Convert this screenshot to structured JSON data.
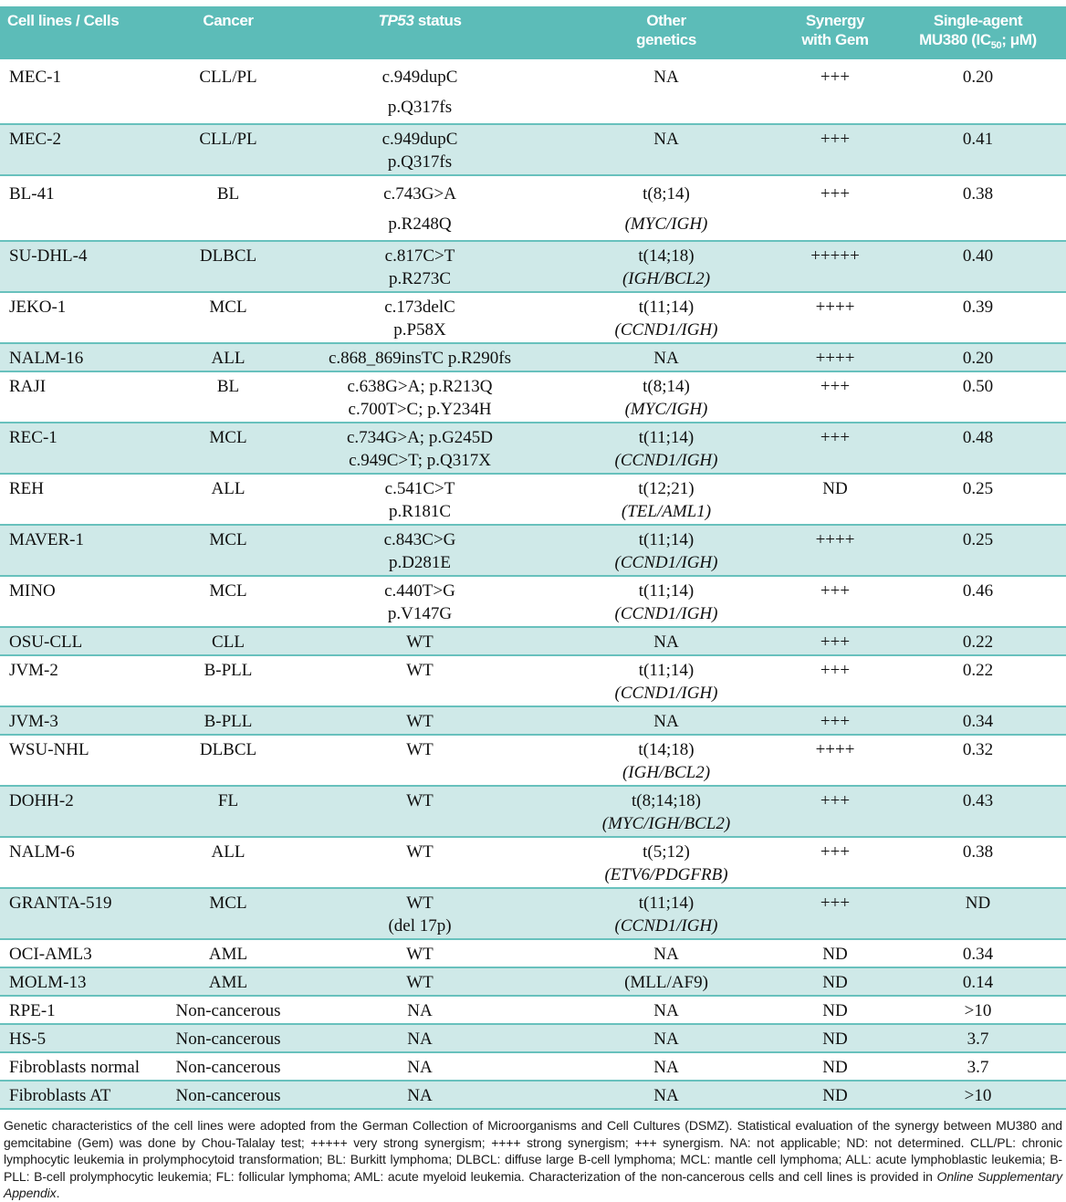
{
  "table": {
    "headers": {
      "col1": "Cell lines / Cells",
      "col2": "Cancer",
      "col3_italic": "TP53",
      "col3_rest": " status",
      "col4_line1": "Other",
      "col4_line2": "genetics",
      "col5_line1": "Synergy",
      "col5_line2": "with Gem",
      "col6_line1": "Single-agent",
      "col6_line2_prefix": "MU380 (IC",
      "col6_line2_sub": "50",
      "col6_line2_suffix": "; μM)"
    },
    "rows": [
      {
        "cell_line": "MEC-1",
        "cancer": "CLL/PL",
        "tp53": [
          "c.949dupC",
          "p.Q317fs"
        ],
        "genetics": [
          "NA"
        ],
        "synergy": "+++",
        "ic50": "0.20",
        "tall": true
      },
      {
        "cell_line": "MEC-2",
        "cancer": "CLL/PL",
        "tp53": [
          "c.949dupC",
          "p.Q317fs"
        ],
        "genetics": [
          "NA"
        ],
        "synergy": "+++",
        "ic50": "0.41",
        "tall": false
      },
      {
        "cell_line": "BL-41",
        "cancer": "BL",
        "tp53": [
          "c.743G>A",
          "p.R248Q"
        ],
        "genetics": [
          "t(8;14)",
          "(MYC/IGH)"
        ],
        "synergy": "+++",
        "ic50": "0.38",
        "tall": true
      },
      {
        "cell_line": "SU-DHL-4",
        "cancer": "DLBCL",
        "tp53": [
          "c.817C>T",
          "p.R273C"
        ],
        "genetics": [
          "t(14;18)",
          "(IGH/BCL2)"
        ],
        "synergy": "+++++",
        "ic50": "0.40",
        "tall": false
      },
      {
        "cell_line": "JEKO-1",
        "cancer": "MCL",
        "tp53": [
          "c.173delC",
          "p.P58X"
        ],
        "genetics": [
          "t(11;14)",
          "(CCND1/IGH)"
        ],
        "synergy": "++++",
        "ic50": "0.39",
        "tall": false
      },
      {
        "cell_line": "NALM-16",
        "cancer": "ALL",
        "tp53": [
          "c.868_869insTC p.R290fs"
        ],
        "genetics": [
          "NA"
        ],
        "synergy": "++++",
        "ic50": "0.20",
        "tall": false
      },
      {
        "cell_line": "RAJI",
        "cancer": "BL",
        "tp53": [
          "c.638G>A; p.R213Q",
          "c.700T>C; p.Y234H"
        ],
        "genetics": [
          "t(8;14)",
          "(MYC/IGH)"
        ],
        "synergy": "+++",
        "ic50": "0.50",
        "tall": false
      },
      {
        "cell_line": "REC-1",
        "cancer": "MCL",
        "tp53": [
          "c.734G>A; p.G245D",
          "c.949C>T; p.Q317X"
        ],
        "genetics": [
          "t(11;14)",
          "(CCND1/IGH)"
        ],
        "synergy": "+++",
        "ic50": "0.48",
        "tall": false
      },
      {
        "cell_line": "REH",
        "cancer": "ALL",
        "tp53": [
          "c.541C>T",
          "p.R181C"
        ],
        "genetics": [
          "t(12;21)",
          "(TEL/AML1)"
        ],
        "synergy": "ND",
        "ic50": "0.25",
        "tall": false
      },
      {
        "cell_line": "MAVER-1",
        "cancer": "MCL",
        "tp53": [
          "c.843C>G",
          "p.D281E"
        ],
        "genetics": [
          "t(11;14)",
          "(CCND1/IGH)"
        ],
        "synergy": "++++",
        "ic50": "0.25",
        "tall": false
      },
      {
        "cell_line": "MINO",
        "cancer": "MCL",
        "tp53": [
          "c.440T>G",
          "p.V147G"
        ],
        "genetics": [
          "t(11;14)",
          "(CCND1/IGH)"
        ],
        "synergy": "+++",
        "ic50": "0.46",
        "tall": false
      },
      {
        "cell_line": "OSU-CLL",
        "cancer": "CLL",
        "tp53": [
          "WT"
        ],
        "genetics": [
          "NA"
        ],
        "synergy": "+++",
        "ic50": "0.22",
        "tall": false
      },
      {
        "cell_line": "JVM-2",
        "cancer": "B-PLL",
        "tp53": [
          "WT"
        ],
        "genetics": [
          "t(11;14)",
          "(CCND1/IGH)"
        ],
        "synergy": "+++",
        "ic50": "0.22",
        "tall": false
      },
      {
        "cell_line": "JVM-3",
        "cancer": "B-PLL",
        "tp53": [
          "WT"
        ],
        "genetics": [
          "NA"
        ],
        "synergy": "+++",
        "ic50": "0.34",
        "tall": false
      },
      {
        "cell_line": "WSU-NHL",
        "cancer": "DLBCL",
        "tp53": [
          "WT"
        ],
        "genetics": [
          "t(14;18)",
          "(IGH/BCL2)"
        ],
        "synergy": "++++",
        "ic50": "0.32",
        "tall": false
      },
      {
        "cell_line": "DOHH-2",
        "cancer": "FL",
        "tp53": [
          "WT"
        ],
        "genetics": [
          "t(8;14;18)",
          "(MYC/IGH/BCL2)"
        ],
        "synergy": "+++",
        "ic50": "0.43",
        "tall": false
      },
      {
        "cell_line": "NALM-6",
        "cancer": "ALL",
        "tp53": [
          "WT"
        ],
        "genetics": [
          "t(5;12)",
          "(ETV6/PDGFRB)"
        ],
        "synergy": "+++",
        "ic50": "0.38",
        "tall": false
      },
      {
        "cell_line": "GRANTA-519",
        "cancer": "MCL",
        "tp53": [
          "WT",
          "(del 17p)"
        ],
        "genetics": [
          "t(11;14)",
          "(CCND1/IGH)"
        ],
        "synergy": "+++",
        "ic50": "ND",
        "tall": false
      },
      {
        "cell_line": "OCI-AML3",
        "cancer": "AML",
        "tp53": [
          "WT"
        ],
        "genetics": [
          "NA"
        ],
        "synergy": "ND",
        "ic50": "0.34",
        "tall": false
      },
      {
        "cell_line": "MOLM-13",
        "cancer": "AML",
        "tp53": [
          "WT"
        ],
        "genetics": [
          "(MLL/AF9)"
        ],
        "synergy": "ND",
        "ic50": "0.14",
        "tall": false
      },
      {
        "cell_line": "RPE-1",
        "cancer": "Non-cancerous",
        "tp53": [
          "NA"
        ],
        "genetics": [
          "NA"
        ],
        "synergy": "ND",
        "ic50": ">10",
        "tall": false
      },
      {
        "cell_line": "HS-5",
        "cancer": "Non-cancerous",
        "tp53": [
          "NA"
        ],
        "genetics": [
          "NA"
        ],
        "synergy": "ND",
        "ic50": "3.7",
        "tall": false
      },
      {
        "cell_line": "Fibroblasts normal",
        "cancer": "Non-cancerous",
        "tp53": [
          "NA"
        ],
        "genetics": [
          "NA"
        ],
        "synergy": "ND",
        "ic50": "3.7",
        "tall": false
      },
      {
        "cell_line": "Fibroblasts AT",
        "cancer": "Non-cancerous",
        "tp53": [
          "NA"
        ],
        "genetics": [
          "NA"
        ],
        "synergy": "ND",
        "ic50": ">10",
        "tall": false
      }
    ]
  },
  "footnote": {
    "text_main": "Genetic characteristics of the cell lines were adopted from the German Collection of Microorganisms and Cell Cultures (DSMZ). Statistical evaluation of the synergy between MU380 and gemcitabine (Gem) was done by Chou-Talalay test; +++++ very strong synergism; ++++ strong synergism; +++ synergism. NA: not applicable; ND: not determined. CLL/PL: chronic lymphocytic leukemia in prolymphocytoid transformation; BL: Burkitt lymphoma; DLBCL: diffuse large B-cell lymphoma; MCL: mantle cell lymphoma; ALL: acute lymphoblastic leukemia; B-PLL: B-cell prolymphocytic leukemia; FL: follicular lymphoma; AML: acute myeloid leukemia. Characterization of the non-cancerous cells and cell lines is provided in ",
    "text_italic": "Online Supplementary Appendix",
    "text_end": "."
  },
  "colors": {
    "header_bg": "#5cbcb8",
    "row_shade": "#cfe9e8",
    "row_border": "#68c1bd"
  }
}
